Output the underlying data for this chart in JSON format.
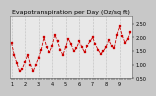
{
  "title": "Evapotranspiration per Day (Oz/sq ft)",
  "line_color": "#cc0000",
  "bg_color": "#c8c8c8",
  "plot_bg": "#e8e8e8",
  "grid_color": "#aaaaaa",
  "y_values": [
    1.8,
    1.35,
    1.05,
    0.75,
    0.85,
    1.1,
    1.35,
    1.0,
    0.75,
    1.0,
    1.25,
    1.55,
    2.0,
    1.65,
    1.45,
    1.7,
    2.1,
    1.85,
    1.55,
    1.35,
    1.65,
    1.95,
    1.75,
    1.5,
    1.6,
    1.85,
    1.65,
    1.45,
    1.7,
    1.85,
    2.0,
    1.75,
    1.55,
    1.4,
    1.5,
    1.65,
    1.9,
    1.7,
    1.6,
    2.1,
    2.4,
    2.05,
    1.8,
    1.95,
    2.2
  ],
  "ylim": [
    0.5,
    2.8
  ],
  "ytick_values": [
    0.5,
    1.0,
    1.5,
    2.0,
    2.5
  ],
  "ytick_labels": [
    "0.50",
    "1.00",
    "1.50",
    "2.00",
    "2.50"
  ],
  "title_fontsize": 4.5,
  "tick_fontsize": 3.5,
  "marker_size": 1.5,
  "line_width": 0.6,
  "left_margin_color": "#888888",
  "n_points": 45,
  "grid_interval": 5
}
